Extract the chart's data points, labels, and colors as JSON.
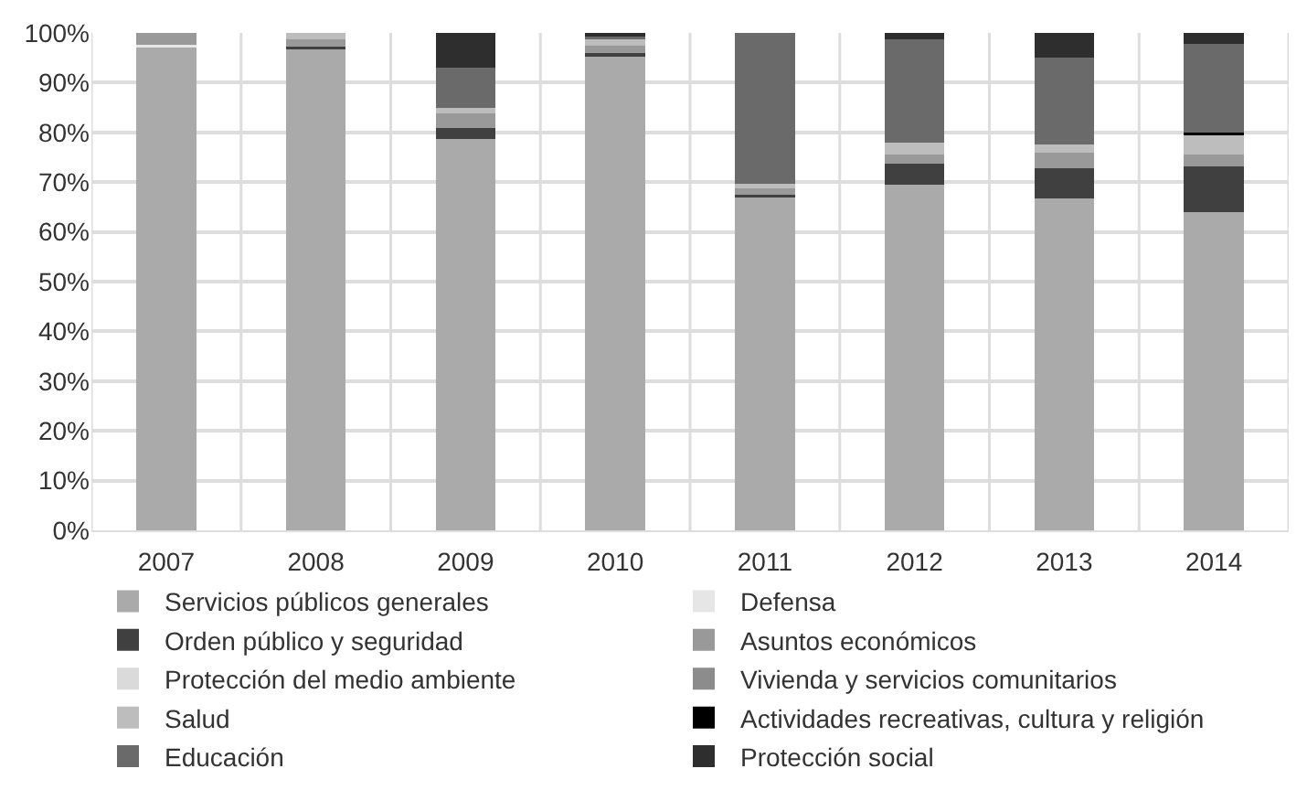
{
  "chart_data": {
    "type": "bar",
    "stacked": true,
    "categories": [
      "2007",
      "2008",
      "2009",
      "2010",
      "2011",
      "2012",
      "2013",
      "2014"
    ],
    "series": [
      {
        "name": "Servicios públicos generales",
        "color": "#aaaaaa",
        "values": [
          97.2,
          96.8,
          78.7,
          95.5,
          67.0,
          69.5,
          66.8,
          64.0
        ]
      },
      {
        "name": "Defensa",
        "color": "#e6e6e6",
        "values": [
          0.5,
          0,
          0,
          0,
          0,
          0,
          0,
          0
        ]
      },
      {
        "name": "Orden público y seguridad",
        "color": "#404040",
        "values": [
          0,
          0.5,
          2.2,
          0.5,
          0.4,
          4.3,
          6.0,
          9.2
        ]
      },
      {
        "name": "Asuntos económicos",
        "color": "#999999",
        "values": [
          2.3,
          1.5,
          3.0,
          1.5,
          1.6,
          1.8,
          3.2,
          2.4
        ]
      },
      {
        "name": "Protección del medio ambiente",
        "color": "#dadada",
        "values": [
          0,
          0,
          0,
          0,
          0,
          0,
          0,
          0
        ]
      },
      {
        "name": "Vivienda y servicios comunitarios",
        "color": "#8c8c8c",
        "values": [
          0,
          0,
          0,
          0,
          0,
          0,
          0,
          0
        ]
      },
      {
        "name": "Salud",
        "color": "#bdbdbd",
        "values": [
          0,
          1.2,
          1.0,
          1.2,
          0.6,
          2.4,
          1.5,
          4.1
        ]
      },
      {
        "name": "Actividades recreativas, cultura y religión",
        "color": "#000000",
        "values": [
          0,
          0,
          0,
          0,
          0,
          0,
          0,
          0.3
        ]
      },
      {
        "name": "Educación",
        "color": "#6a6a6a",
        "values": [
          0,
          0,
          8.1,
          0.8,
          30.4,
          20.8,
          17.6,
          17.8
        ]
      },
      {
        "name": "Protección social",
        "color": "#2e2e2e",
        "values": [
          0,
          0,
          7.0,
          0.5,
          0,
          1.2,
          4.9,
          2.2
        ]
      }
    ],
    "ylim": [
      0,
      100
    ],
    "yticks": [
      {
        "value": 0,
        "label": "0%"
      },
      {
        "value": 10,
        "label": "10%"
      },
      {
        "value": 20,
        "label": "20%"
      },
      {
        "value": 30,
        "label": "30%"
      },
      {
        "value": 40,
        "label": "40%"
      },
      {
        "value": 50,
        "label": "50%"
      },
      {
        "value": 60,
        "label": "60%"
      },
      {
        "value": 70,
        "label": "70%"
      },
      {
        "value": 80,
        "label": "80%"
      },
      {
        "value": 90,
        "label": "90%"
      },
      {
        "value": 100,
        "label": "100%"
      }
    ],
    "grid": true,
    "legend": "bottom"
  }
}
